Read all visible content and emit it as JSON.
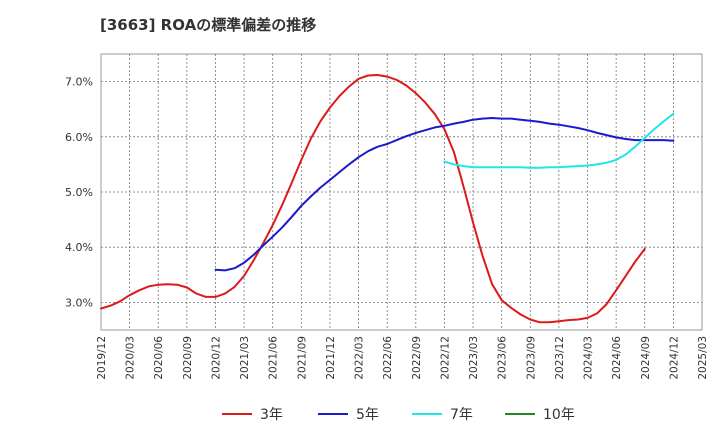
{
  "title": "[3663]  ROAの標準偏差の推移",
  "chart_data": {
    "type": "line",
    "ylim": [
      2.5,
      7.5
    ],
    "yticks": [
      3.0,
      4.0,
      5.0,
      6.0,
      7.0
    ],
    "ytick_labels": [
      "3.0%",
      "4.0%",
      "5.0%",
      "6.0%",
      "7.0%"
    ],
    "xtick_labels": [
      "2019/12",
      "2020/03",
      "2020/06",
      "2020/09",
      "2020/12",
      "2021/03",
      "2021/06",
      "2021/09",
      "2021/12",
      "2022/03",
      "2022/06",
      "2022/09",
      "2022/12",
      "2023/03",
      "2023/06",
      "2023/09",
      "2023/12",
      "2024/03",
      "2024/06",
      "2024/09",
      "2024/12",
      "2025/03"
    ],
    "grid": true,
    "legend_position": "bottom",
    "series": [
      {
        "name": "3年",
        "color": "#dd1a1a",
        "x_start": 0,
        "values": [
          2.89,
          2.94,
          3.02,
          3.13,
          3.22,
          3.29,
          3.32,
          3.33,
          3.32,
          3.27,
          3.16,
          3.1,
          3.1,
          3.16,
          3.28,
          3.48,
          3.76,
          4.07,
          4.4,
          4.77,
          5.17,
          5.58,
          5.97,
          6.28,
          6.53,
          6.74,
          6.91,
          7.05,
          7.11,
          7.12,
          7.09,
          7.03,
          6.93,
          6.79,
          6.62,
          6.41,
          6.14,
          5.72,
          5.1,
          4.45,
          3.84,
          3.33,
          3.04,
          2.9,
          2.78,
          2.69,
          2.64,
          2.64,
          2.66,
          2.68,
          2.69,
          2.72,
          2.8,
          2.97,
          3.22,
          3.48,
          3.74,
          3.97
        ]
      },
      {
        "name": "5年",
        "color": "#1a1acc",
        "x_start": 12,
        "values": [
          3.59,
          3.58,
          3.62,
          3.72,
          3.86,
          4.03,
          4.19,
          4.36,
          4.55,
          4.75,
          4.92,
          5.08,
          5.22,
          5.36,
          5.5,
          5.63,
          5.74,
          5.82,
          5.87,
          5.94,
          6.01,
          6.07,
          6.12,
          6.17,
          6.2,
          6.24,
          6.27,
          6.31,
          6.33,
          6.34,
          6.33,
          6.33,
          6.31,
          6.29,
          6.27,
          6.24,
          6.22,
          6.19,
          6.16,
          6.12,
          6.07,
          6.03,
          5.99,
          5.96,
          5.94,
          5.94,
          5.94,
          5.94,
          5.93
        ]
      },
      {
        "name": "7年",
        "color": "#22e5e5",
        "x_start": 36,
        "values": [
          5.55,
          5.5,
          5.47,
          5.45,
          5.45,
          5.45,
          5.45,
          5.45,
          5.45,
          5.44,
          5.44,
          5.45,
          5.45,
          5.46,
          5.47,
          5.48,
          5.5,
          5.53,
          5.58,
          5.68,
          5.82,
          5.98,
          6.14,
          6.28,
          6.42
        ]
      },
      {
        "name": "10年",
        "color": "#228822",
        "x_start": 0,
        "values": []
      }
    ]
  }
}
